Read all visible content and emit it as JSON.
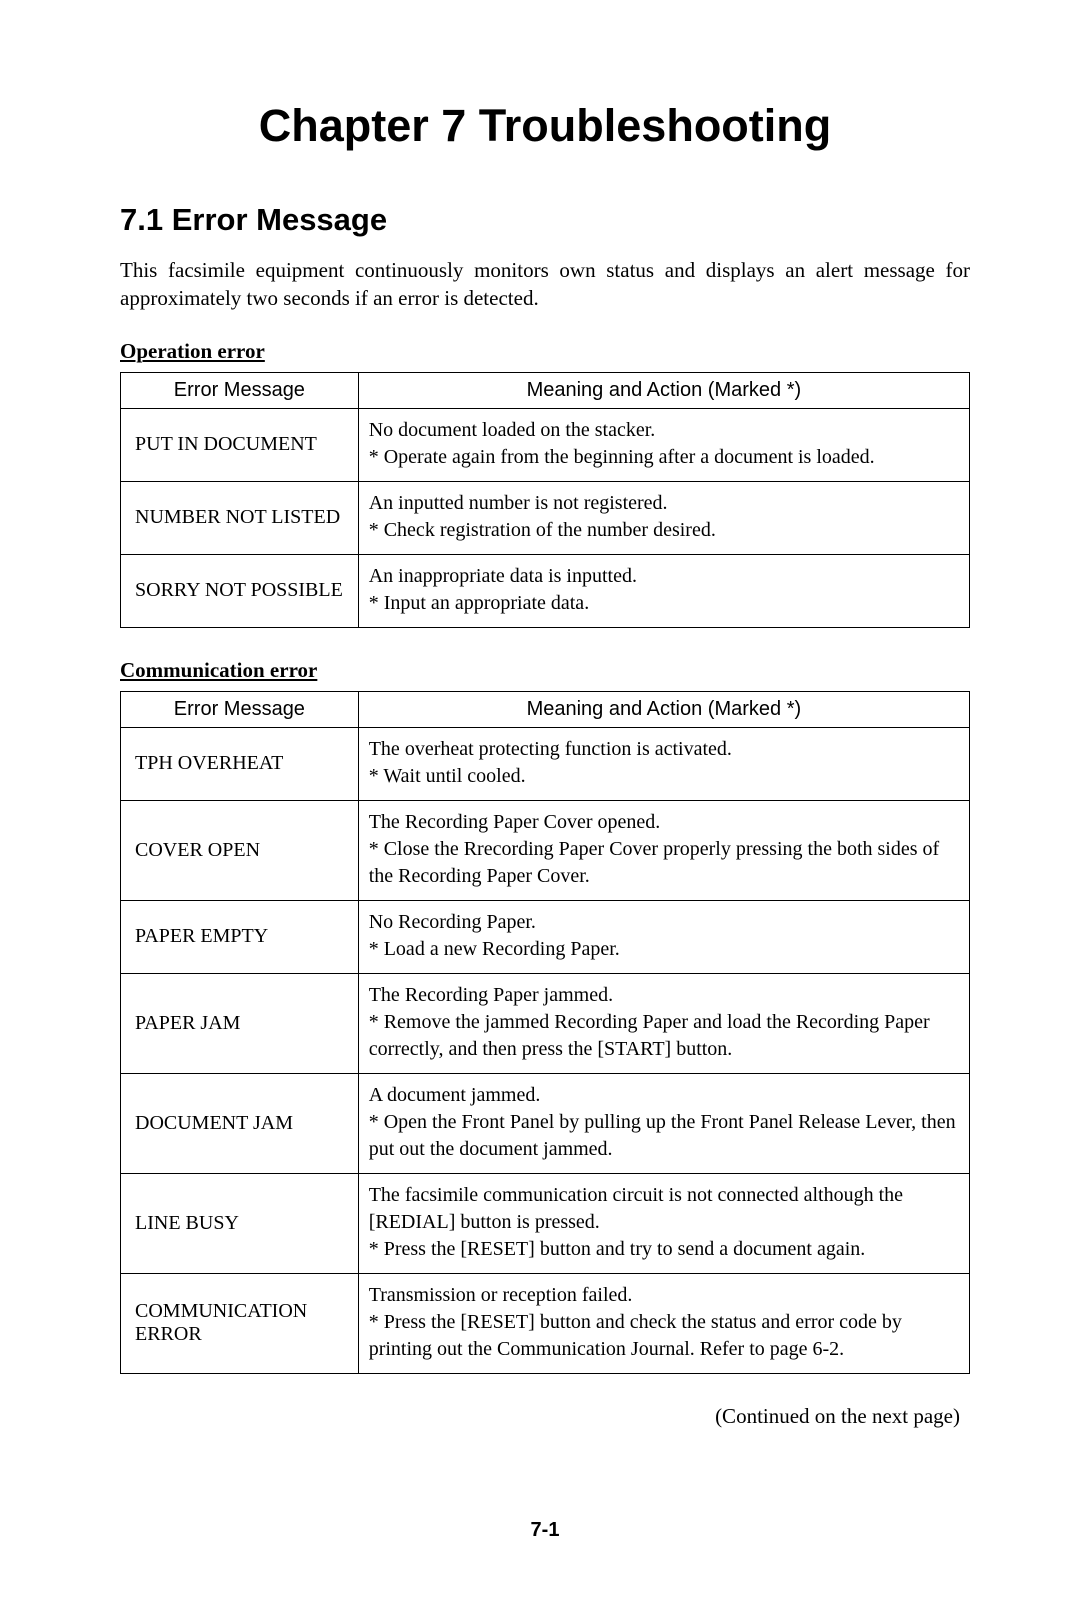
{
  "chapter_title": "Chapter 7  Troubleshooting",
  "section_title": "7.1 Error Message",
  "intro": "This facsimile equipment continuously monitors own status and displays an alert message for approximately two seconds if an error is detected.",
  "operation": {
    "heading": "Operation error",
    "col1": "Error Message",
    "col2": "Meaning and Action (Marked *)",
    "rows": [
      {
        "msg": "PUT IN DOCUMENT",
        "line1": "No document loaded on the stacker.",
        "line2": "* Operate again from the beginning after a document is loaded."
      },
      {
        "msg": "NUMBER NOT LISTED",
        "line1": "An inputted number is not registered.",
        "line2": "* Check registration of the number desired."
      },
      {
        "msg": "SORRY NOT POSSIBLE",
        "line1": "An inappropriate data is inputted.",
        "line2": "* Input an appropriate data."
      }
    ]
  },
  "communication": {
    "heading": "Communication error",
    "col1": "Error Message",
    "col2": "Meaning and Action (Marked *)",
    "rows": [
      {
        "msg": "TPH OVERHEAT",
        "line1": "The overheat protecting function is activated.",
        "line2": "* Wait until cooled."
      },
      {
        "msg": "COVER OPEN",
        "line1": "The Recording Paper Cover opened.",
        "line2": "* Close the Rrecording Paper Cover properly pressing the both sides of the Recording Paper Cover."
      },
      {
        "msg": "PAPER EMPTY",
        "line1": "No Recording Paper.",
        "line2": "* Load a new Recording Paper."
      },
      {
        "msg": "PAPER JAM",
        "line1": "The Recording Paper jammed.",
        "line2": "* Remove the jammed Recording Paper and load the Recording Paper correctly, and then press the [START] button."
      },
      {
        "msg": "DOCUMENT JAM",
        "line1": "A document jammed.",
        "line2": "* Open the Front Panel by pulling up the Front Panel Release Lever, then put out the document jammed."
      },
      {
        "msg": "LINE BUSY",
        "line1": "The facsimile communication circuit is not connected although the [REDIAL] button is pressed.",
        "line2": "* Press the [RESET] button and try to send a document again."
      },
      {
        "msg": "COMMUNICATION ERROR",
        "line1": "Transmission or reception failed.",
        "line2": "* Press the [RESET] button and check the status and error code by printing out the Communication Journal. Refer to page 6-2."
      }
    ]
  },
  "continued": "(Continued on the next page)",
  "page_number": "7-1"
}
